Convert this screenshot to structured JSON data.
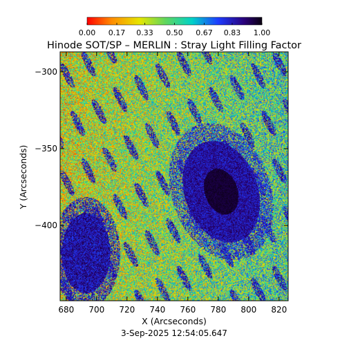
{
  "chart_data": {
    "type": "heatmap",
    "title": "Hinode SOT/SP – MERLIN : Stray Light Filling Factor",
    "xlabel": "X (Arcseconds)",
    "ylabel": "Y (Arcseconds)",
    "xlim": [
      676,
      826
    ],
    "ylim": [
      -449,
      -287
    ],
    "x_ticks": [
      680,
      700,
      720,
      740,
      760,
      780,
      800,
      820
    ],
    "x_tick_labels": [
      "680",
      "700",
      "720",
      "740",
      "760",
      "780",
      "800",
      "820"
    ],
    "y_ticks": [
      -300,
      -350,
      -400
    ],
    "y_tick_labels": [
      "−300",
      "−350",
      "−400"
    ],
    "colorbar": {
      "range": [
        0.0,
        1.0
      ],
      "tick_values": [
        0.0,
        0.17,
        0.33,
        0.5,
        0.67,
        0.83,
        1.0
      ],
      "tick_labels": [
        "0.00",
        "0.17",
        "0.33",
        "0.50",
        "0.67",
        "0.83",
        "1.00"
      ],
      "colormap_stops": [
        "#ff0000",
        "#ff8c00",
        "#e6e600",
        "#5fd65f",
        "#00d2c8",
        "#1e3cff",
        "#2a0078",
        "#0a0010"
      ]
    },
    "features": [
      {
        "name": "sunspot",
        "x_center": 782,
        "y_center": -378,
        "x_halfwidth": 24,
        "y_halfwidth": 62,
        "umbra_value": 0.95
      },
      {
        "name": "pore-left",
        "x_center": 693,
        "y_center": -418,
        "x_halfwidth": 16,
        "y_halfwidth": 26,
        "value": 0.82
      }
    ],
    "background_value": 0.4,
    "grid": false
  },
  "footer": {
    "timestamp": "3-Sep-2025 12:54:05.647"
  }
}
